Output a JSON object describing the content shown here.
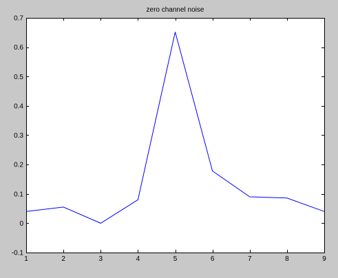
{
  "chart_data": {
    "type": "line",
    "title": "zero channel noise",
    "xlabel": "",
    "ylabel": "",
    "xlim": [
      1,
      9
    ],
    "ylim": [
      -0.1,
      0.7
    ],
    "x_ticks": [
      1,
      2,
      3,
      4,
      5,
      6,
      7,
      8,
      9
    ],
    "x_tick_labels": [
      "1",
      "2",
      "3",
      "4",
      "5",
      "6",
      "7",
      "8",
      "9"
    ],
    "y_ticks": [
      -0.1,
      0,
      0.1,
      0.2,
      0.3,
      0.4,
      0.5,
      0.6,
      0.7
    ],
    "y_tick_labels": [
      "-0.1",
      "0",
      "0.1",
      "0.2",
      "0.3",
      "0.4",
      "0.5",
      "0.6",
      "0.7"
    ],
    "grid": false,
    "series": [
      {
        "x": [
          1,
          2,
          3,
          4,
          5,
          6,
          7,
          8,
          9
        ],
        "values": [
          0.04,
          0.055,
          0.0,
          0.08,
          0.652,
          0.178,
          0.09,
          0.086,
          0.04
        ],
        "color": "#0000ff"
      }
    ],
    "colors": {
      "figure_background": "#c8c8c8",
      "axes_background": "#ffffff",
      "axes_edge": "#000000"
    }
  }
}
